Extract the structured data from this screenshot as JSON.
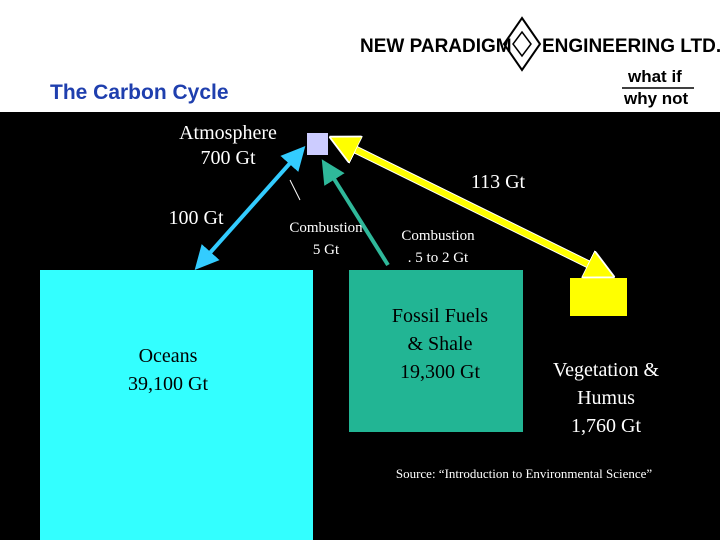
{
  "header": {
    "company": [
      "NEW PARADIGM",
      "ENGINEERING LTD."
    ],
    "tagline": [
      "what if",
      "why not"
    ],
    "title": "The Carbon Cycle"
  },
  "nodes": [
    {
      "id": "atmosphere",
      "label": [
        "Atmosphere",
        "700 Gt"
      ]
    },
    {
      "id": "oceans",
      "label": [
        "Oceans",
        "39,100 Gt"
      ]
    },
    {
      "id": "fossil",
      "label": [
        "Fossil Fuels",
        "& Shale",
        "19,300 Gt"
      ]
    },
    {
      "id": "vegetation",
      "label": [
        "Vegetation &",
        "Humus",
        "1,760 Gt"
      ]
    }
  ],
  "flows": [
    {
      "label": [
        "100 Gt"
      ]
    },
    {
      "label": [
        "Combustion",
        "5 Gt"
      ]
    },
    {
      "label": [
        "Combustion",
        ". 5 to 2 Gt"
      ]
    },
    {
      "label": [
        "113 Gt"
      ]
    }
  ],
  "source": "Source: “Introduction to Environmental Science”"
}
